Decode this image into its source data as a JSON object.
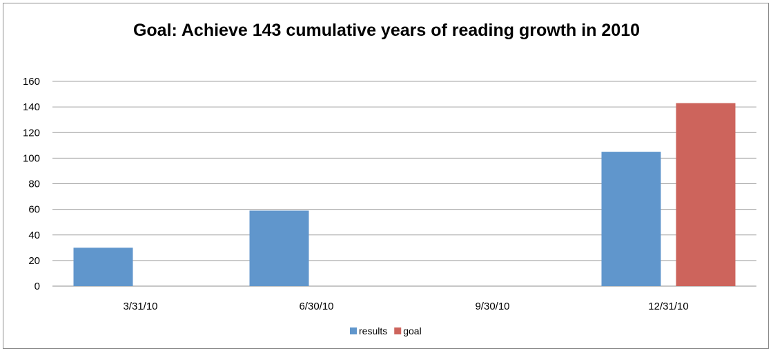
{
  "chart_data": {
    "type": "bar",
    "title": "Goal: Achieve 143 cumulative years of reading growth in 2010",
    "xlabel": "",
    "ylabel": "",
    "categories": [
      "3/31/10",
      "6/30/10",
      "9/30/10",
      "12/31/10"
    ],
    "series": [
      {
        "name": "results",
        "values": [
          30,
          59,
          null,
          105
        ],
        "color": "#6096cc"
      },
      {
        "name": "goal",
        "values": [
          null,
          null,
          null,
          143
        ],
        "color": "#cd645c"
      }
    ],
    "ylim": [
      0,
      160
    ],
    "yticks": [
      "0",
      "20",
      "40",
      "60",
      "80",
      "100",
      "120",
      "140",
      "160"
    ],
    "grid": true,
    "legend_position": "bottom"
  }
}
